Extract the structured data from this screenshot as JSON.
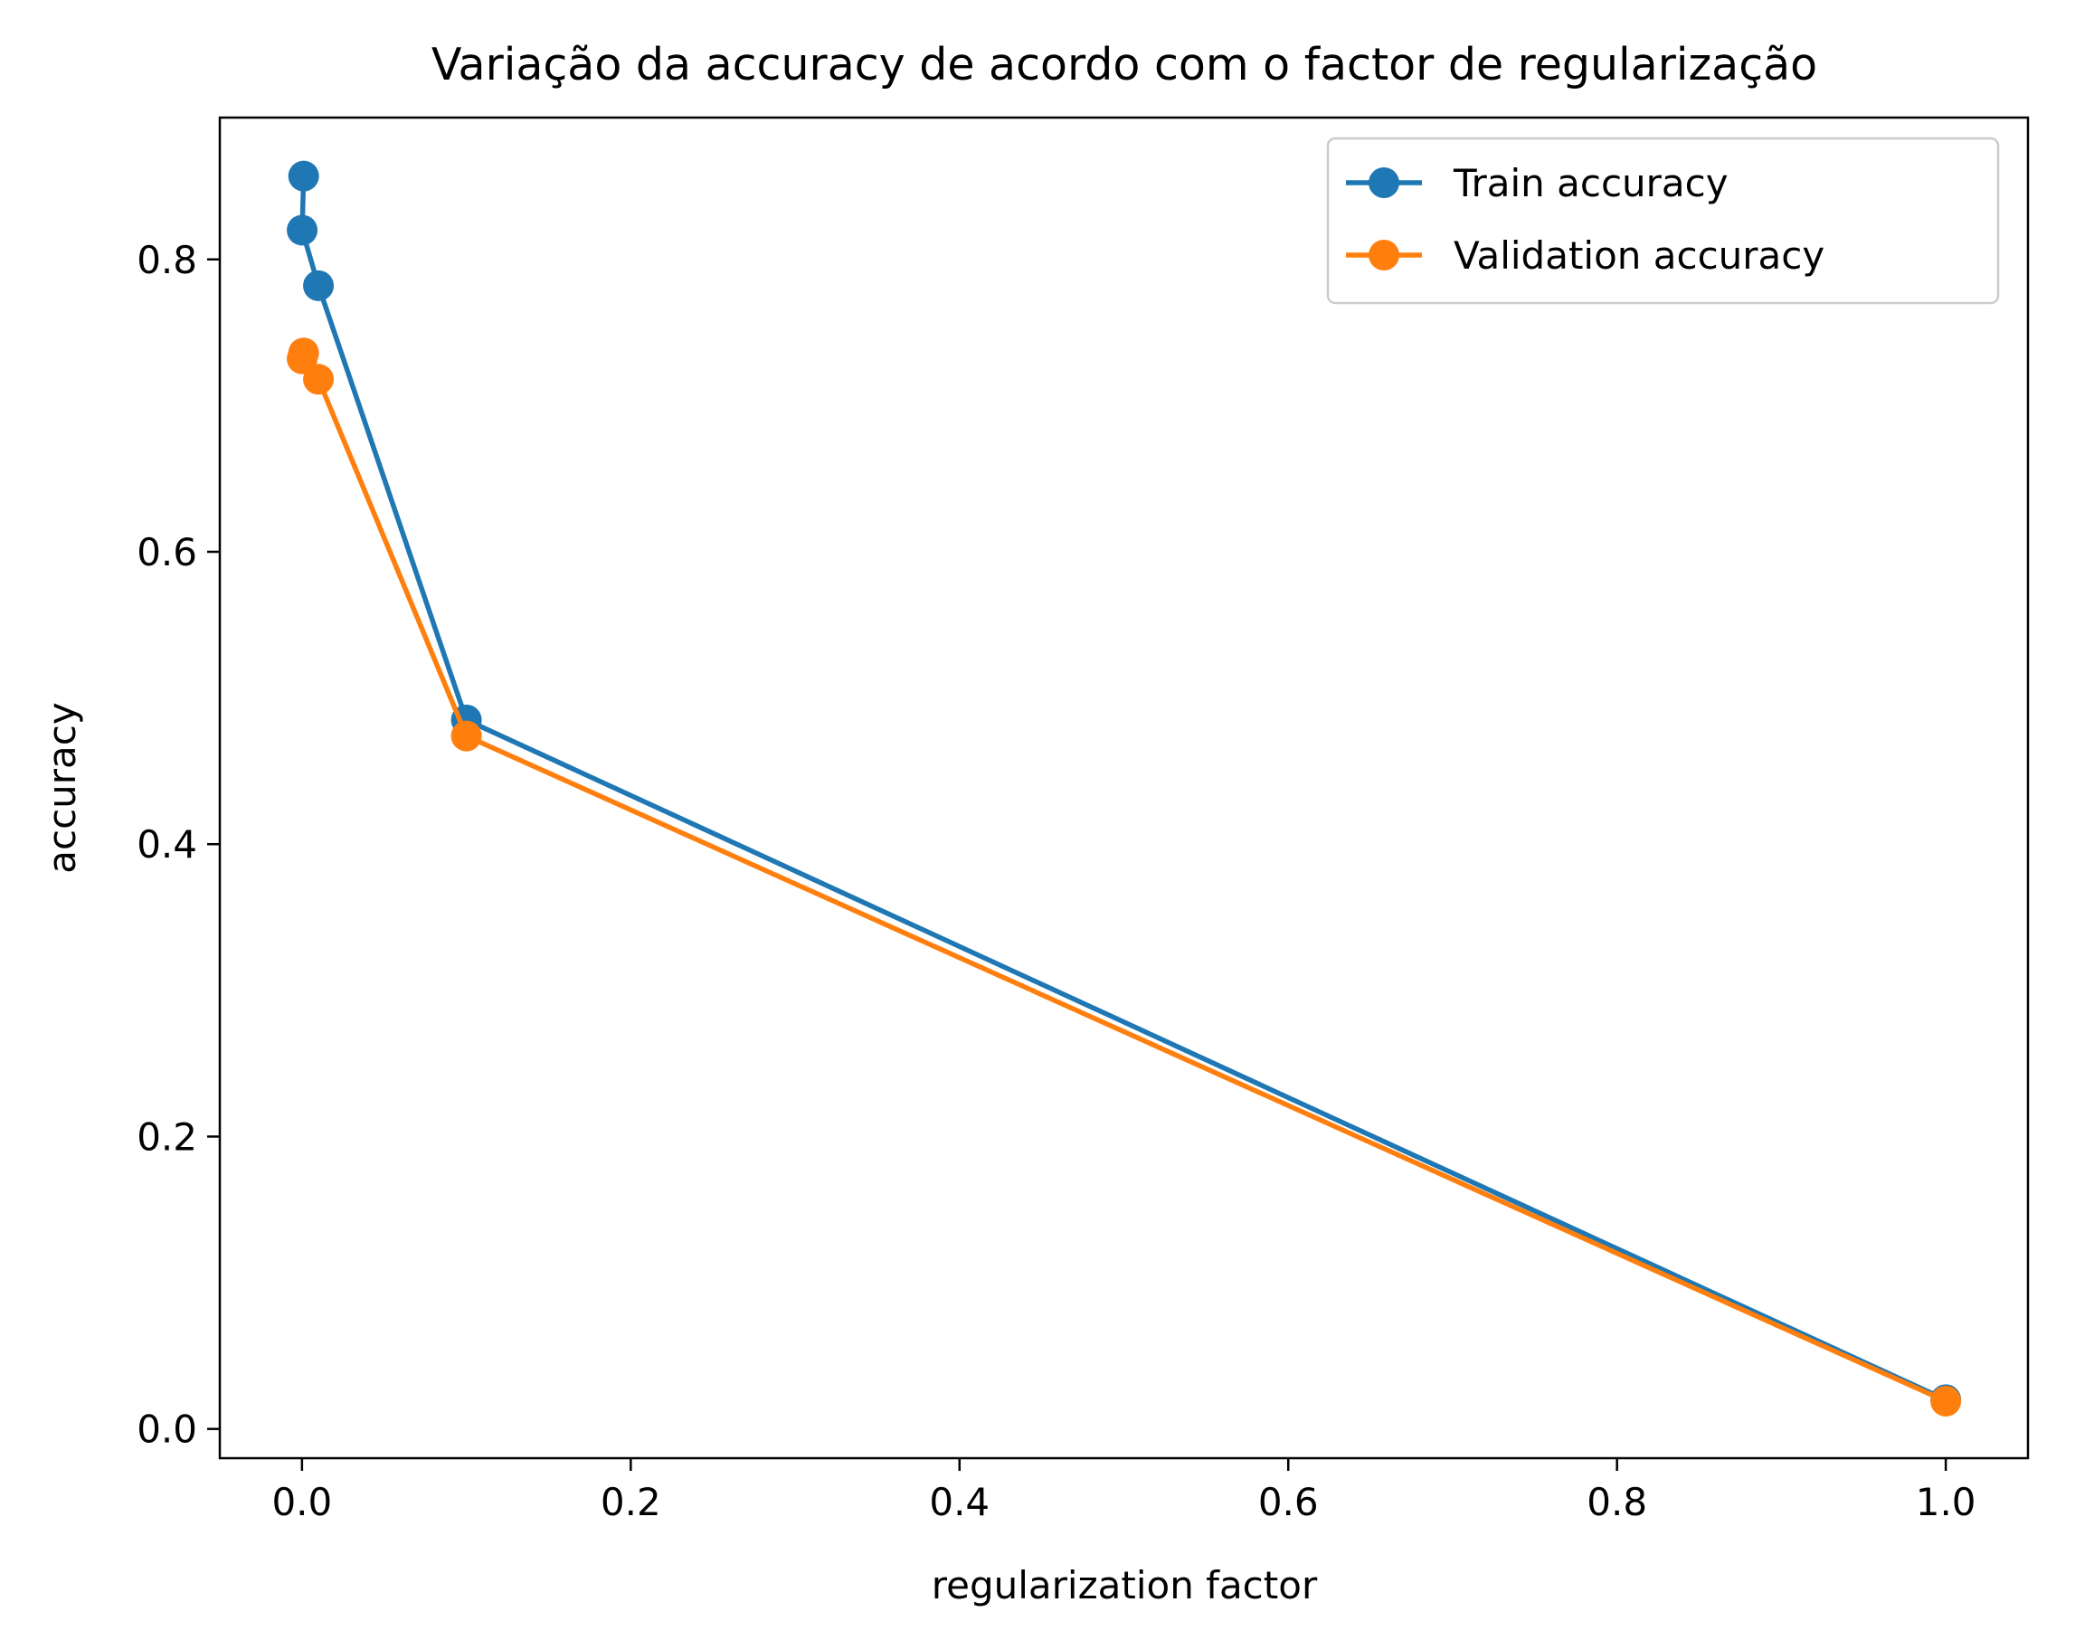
{
  "chart_data": {
    "type": "line",
    "title": "Variação da accuracy de acordo com o factor de regularização",
    "xlabel": "regularization factor",
    "ylabel": "accuracy",
    "xlim": [
      -0.05,
      1.05
    ],
    "ylim": [
      -0.02,
      0.897
    ],
    "xticks": [
      0.0,
      0.2,
      0.4,
      0.6,
      0.8,
      1.0
    ],
    "xtick_labels": [
      "0.0",
      "0.2",
      "0.4",
      "0.6",
      "0.8",
      "1.0"
    ],
    "yticks": [
      0.0,
      0.2,
      0.4,
      0.6,
      0.8
    ],
    "ytick_labels": [
      "0.0",
      "0.2",
      "0.4",
      "0.6",
      "0.8"
    ],
    "grid": false,
    "legend_position": "upper right",
    "series": [
      {
        "name": "Train accuracy",
        "color": "#1f77b4",
        "marker": "circle",
        "x": [
          0.001,
          0.0001,
          0.01,
          0.1,
          1.0
        ],
        "y": [
          0.857,
          0.82,
          0.782,
          0.485,
          0.02
        ]
      },
      {
        "name": "Validation accuracy",
        "color": "#ff7f0e",
        "marker": "circle",
        "x": [
          0.001,
          0.0001,
          0.01,
          0.1,
          1.0
        ],
        "y": [
          0.736,
          0.732,
          0.718,
          0.474,
          0.019
        ]
      }
    ]
  }
}
